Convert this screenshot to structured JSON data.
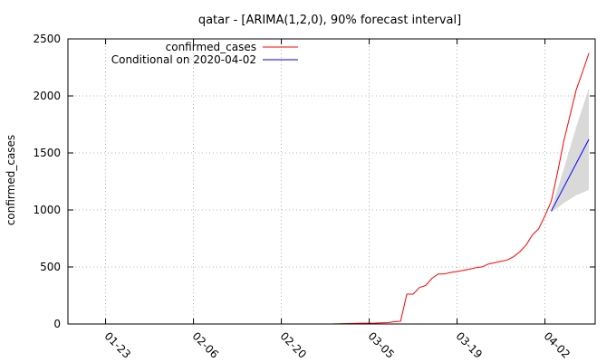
{
  "chart_data": {
    "type": "line",
    "title": "qatar -  [ARIMA(1,2,0), 90% forecast interval]",
    "xlabel": "",
    "ylabel": "confirmed_cases",
    "x_start": "2020-01-17",
    "x_end": "2020-04-10",
    "ylim": [
      0,
      2500
    ],
    "yticks": [
      0,
      500,
      1000,
      1500,
      2000,
      2500
    ],
    "xticks": [
      {
        "date": "2020-01-23",
        "label": "01-23"
      },
      {
        "date": "2020-02-06",
        "label": "02-06"
      },
      {
        "date": "2020-02-20",
        "label": "02-20"
      },
      {
        "date": "2020-03-05",
        "label": "03-05"
      },
      {
        "date": "2020-03-19",
        "label": "03-19"
      },
      {
        "date": "2020-04-02",
        "label": "04-02"
      }
    ],
    "grid": true,
    "legend_position": "top-left",
    "series": [
      {
        "name": "confirmed_cases",
        "color": "#ff0000",
        "points": [
          [
            "2020-02-28",
            0
          ],
          [
            "2020-03-01",
            3
          ],
          [
            "2020-03-04",
            7
          ],
          [
            "2020-03-06",
            8
          ],
          [
            "2020-03-08",
            12
          ],
          [
            "2020-03-09",
            20
          ],
          [
            "2020-03-10",
            24
          ],
          [
            "2020-03-11",
            262
          ],
          [
            "2020-03-12",
            262
          ],
          [
            "2020-03-13",
            320
          ],
          [
            "2020-03-14",
            337
          ],
          [
            "2020-03-15",
            401
          ],
          [
            "2020-03-16",
            439
          ],
          [
            "2020-03-17",
            439
          ],
          [
            "2020-03-18",
            452
          ],
          [
            "2020-03-19",
            460
          ],
          [
            "2020-03-20",
            470
          ],
          [
            "2020-03-21",
            481
          ],
          [
            "2020-03-22",
            494
          ],
          [
            "2020-03-23",
            501
          ],
          [
            "2020-03-24",
            526
          ],
          [
            "2020-03-25",
            537
          ],
          [
            "2020-03-26",
            549
          ],
          [
            "2020-03-27",
            562
          ],
          [
            "2020-03-28",
            590
          ],
          [
            "2020-03-29",
            634
          ],
          [
            "2020-03-30",
            693
          ],
          [
            "2020-03-31",
            781
          ],
          [
            "2020-04-01",
            835
          ],
          [
            "2020-04-02",
            949
          ],
          [
            "2020-04-03",
            1075
          ],
          [
            "2020-04-04",
            1325
          ],
          [
            "2020-04-05",
            1604
          ],
          [
            "2020-04-06",
            1832
          ],
          [
            "2020-04-07",
            2057
          ],
          [
            "2020-04-08",
            2210
          ],
          [
            "2020-04-09",
            2376
          ]
        ]
      },
      {
        "name": "Conditional on 2020-04-02",
        "color": "#0000ff",
        "points": [
          [
            "2020-04-03",
            990
          ],
          [
            "2020-04-09",
            1620
          ]
        ]
      }
    ],
    "forecast_interval": {
      "color": "#d9d9d9",
      "points": [
        [
          "2020-04-03",
          975,
          1010
        ],
        [
          "2020-04-05",
          1060,
          1360
        ],
        [
          "2020-04-07",
          1130,
          1730
        ],
        [
          "2020-04-09",
          1175,
          2070
        ]
      ]
    }
  }
}
